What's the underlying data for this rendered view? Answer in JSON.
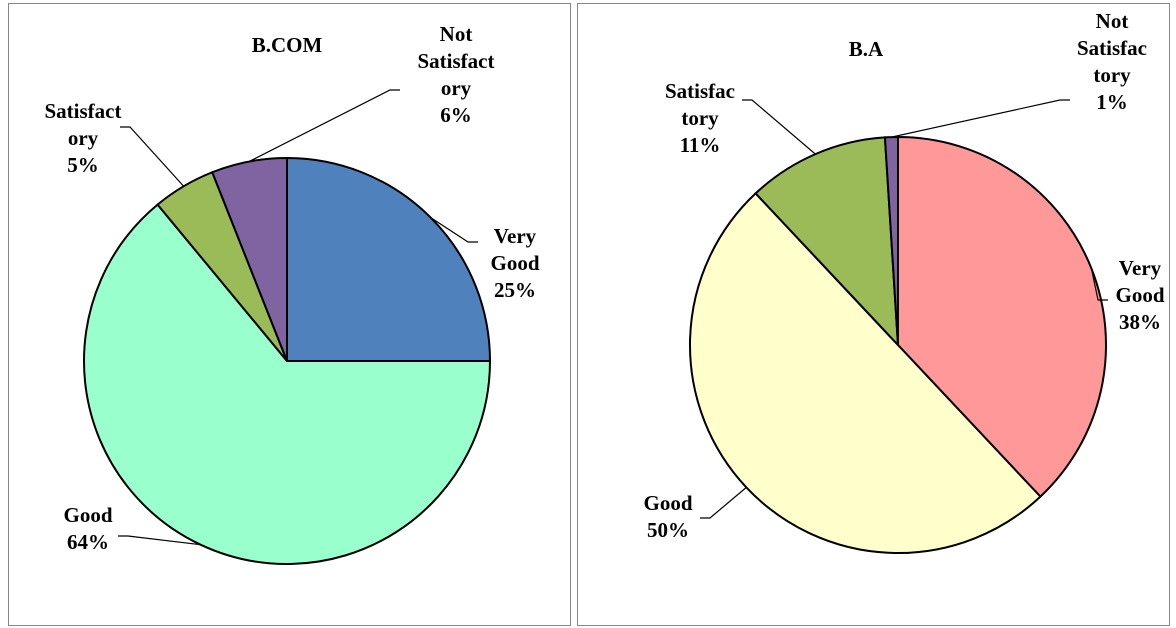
{
  "chart_data": [
    {
      "type": "pie",
      "title": "B.COM",
      "categories": [
        "Very Good",
        "Good",
        "Satisfactory",
        "Not Satisfactory"
      ],
      "values": [
        25,
        64,
        5,
        6
      ],
      "value_labels": [
        "25%",
        "64%",
        "5%",
        "6%"
      ],
      "colors": [
        "#4f81bd",
        "#99ffcc",
        "#9bbb59",
        "#8064a2"
      ]
    },
    {
      "type": "pie",
      "title": "B.A",
      "categories": [
        "Very Good",
        "Good",
        "Satisfactory",
        "Not Satisfactory"
      ],
      "values": [
        38,
        50,
        11,
        1
      ],
      "value_labels": [
        "38%",
        "50%",
        "11%",
        "1%"
      ],
      "colors": [
        "#ff9999",
        "#ffffcc",
        "#9bbb59",
        "#8064a2"
      ]
    }
  ]
}
